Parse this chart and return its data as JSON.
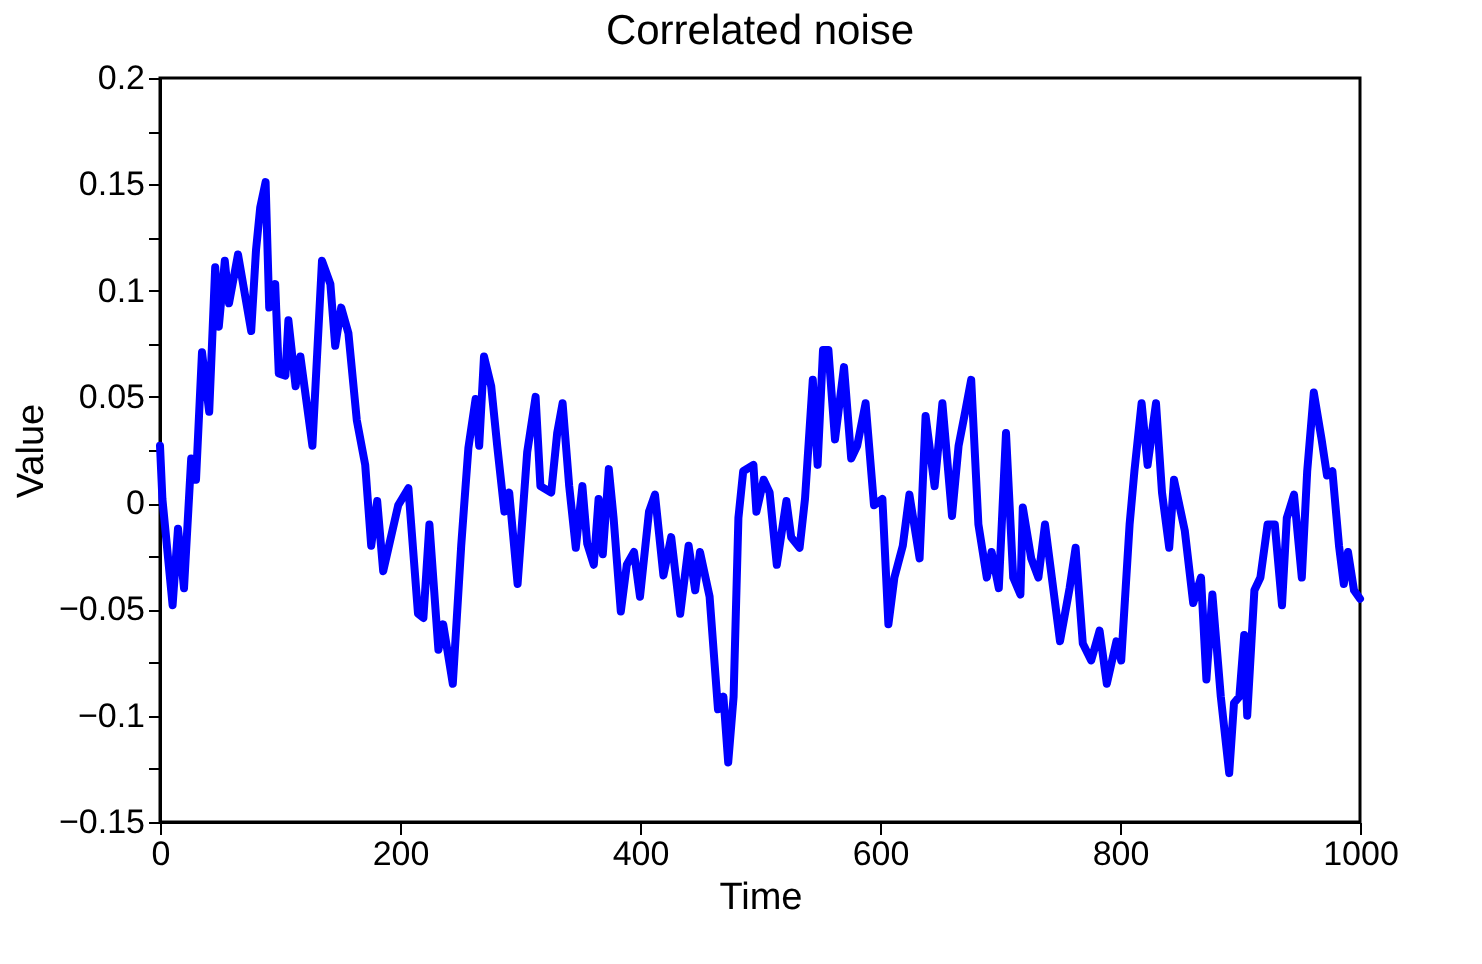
{
  "chart_data": {
    "type": "line",
    "title": "Correlated noise",
    "xlabel": "Time",
    "ylabel": "Value",
    "xlim": [
      0,
      1000
    ],
    "xticks": [
      0,
      200,
      400,
      600,
      800,
      1000
    ],
    "ylim": [
      -0.15,
      0.2
    ],
    "yticks": [
      {
        "value": -0.15,
        "label": "−0.15"
      },
      {
        "value": -0.125,
        "label": null
      },
      {
        "value": -0.1,
        "label": "−0.1"
      },
      {
        "value": -0.075,
        "label": null
      },
      {
        "value": -0.05,
        "label": "−0.05"
      },
      {
        "value": -0.025,
        "label": null
      },
      0,
      {
        "value": 0.025,
        "label": null
      },
      0.05,
      {
        "value": 0.075,
        "label": null
      },
      0.1,
      {
        "value": 0.125,
        "label": null
      },
      0.15,
      {
        "value": 0.175,
        "label": null
      },
      0.2
    ],
    "grid": false,
    "marker": "none",
    "line_style": "solid",
    "series": [
      {
        "color": "#0000ff",
        "x": [
          0,
          2,
          10.5,
          15,
          20,
          26,
          30,
          35,
          41,
          46,
          49,
          54,
          57.5,
          65,
          76,
          80,
          83.5,
          88,
          91,
          96,
          99,
          104.5,
          107,
          113,
          117,
          127,
          135,
          142,
          146,
          151,
          157,
          164,
          171,
          176,
          181,
          186,
          198.5,
          207,
          215,
          219.5,
          224.5,
          232,
          236,
          244,
          251,
          257,
          263,
          266,
          270,
          276,
          281,
          287,
          291,
          298,
          306,
          313,
          317,
          326,
          331,
          335.5,
          341,
          346.5,
          352,
          356,
          361.5,
          365.5,
          369,
          374,
          378,
          384,
          389,
          395,
          400,
          407.5,
          412.5,
          419.5,
          426,
          433.5,
          440.5,
          446,
          450,
          458,
          465,
          469.5,
          473.5,
          478,
          482,
          486,
          494.5,
          497,
          503,
          508,
          514,
          522,
          526,
          533,
          537.5,
          544,
          548,
          552.5,
          557,
          562.5,
          570,
          576,
          581,
          588,
          595,
          602,
          607,
          612,
          619,
          624.5,
          633,
          638,
          645.5,
          652,
          660,
          665.5,
          671,
          676,
          682,
          689,
          693,
          699,
          705,
          711,
          717,
          719,
          726,
          732,
          737.5,
          745,
          750,
          758,
          763,
          769,
          776,
          783,
          789,
          797,
          801,
          808,
          812,
          818,
          823,
          830,
          835,
          841,
          845,
          854,
          861,
          867.5,
          872,
          877,
          884,
          891,
          895,
          899.5,
          903.5,
          906,
          912,
          917,
          923,
          929,
          935,
          939,
          945,
          951.5,
          956,
          961.5,
          968,
          972.5,
          977,
          982.5,
          986.5,
          990,
          995,
          1000
        ],
        "values": [
          0.027,
          0.002,
          -0.048,
          -0.012,
          -0.04,
          0.021,
          0.011,
          0.071,
          0.043,
          0.111,
          0.083,
          0.114,
          0.094,
          0.117,
          0.081,
          0.119,
          0.139,
          0.151,
          0.092,
          0.103,
          0.061,
          0.06,
          0.086,
          0.055,
          0.069,
          0.027,
          0.114,
          0.103,
          0.074,
          0.092,
          0.08,
          0.039,
          0.018,
          -0.02,
          0.001,
          -0.032,
          -0.001,
          0.007,
          -0.052,
          -0.054,
          -0.01,
          -0.069,
          -0.057,
          -0.085,
          -0.02,
          0.026,
          0.049,
          0.027,
          0.069,
          0.055,
          0.027,
          -0.004,
          0.005,
          -0.038,
          0.024,
          0.05,
          0.008,
          0.005,
          0.033,
          0.047,
          0.008,
          -0.021,
          0.008,
          -0.019,
          -0.029,
          0.002,
          -0.024,
          0.016,
          -0.007,
          -0.051,
          -0.029,
          -0.023,
          -0.044,
          -0.004,
          0.004,
          -0.034,
          -0.016,
          -0.052,
          -0.02,
          -0.041,
          -0.023,
          -0.044,
          -0.097,
          -0.091,
          -0.122,
          -0.091,
          -0.007,
          0.015,
          0.018,
          -0.004,
          0.011,
          0.005,
          -0.029,
          0.001,
          -0.016,
          -0.021,
          0.002,
          0.058,
          0.018,
          0.072,
          0.072,
          0.03,
          0.064,
          0.021,
          0.027,
          0.047,
          -0.001,
          0.002,
          -0.057,
          -0.035,
          -0.02,
          0.004,
          -0.026,
          0.041,
          0.008,
          0.047,
          -0.006,
          0.027,
          0.043,
          0.058,
          -0.01,
          -0.035,
          -0.023,
          -0.04,
          0.033,
          -0.035,
          -0.043,
          -0.002,
          -0.026,
          -0.035,
          -0.01,
          -0.043,
          -0.065,
          -0.04,
          -0.021,
          -0.066,
          -0.074,
          -0.06,
          -0.085,
          -0.065,
          -0.074,
          -0.01,
          0.015,
          0.047,
          0.018,
          0.047,
          0.005,
          -0.021,
          0.011,
          -0.013,
          -0.047,
          -0.035,
          -0.083,
          -0.043,
          -0.091,
          -0.127,
          -0.094,
          -0.091,
          -0.062,
          -0.1,
          -0.041,
          -0.035,
          -0.01,
          -0.01,
          -0.048,
          -0.007,
          0.004,
          -0.035,
          0.015,
          0.052,
          0.03,
          0.013,
          0.015,
          -0.02,
          -0.038,
          -0.023,
          -0.041,
          -0.045
        ]
      }
    ]
  }
}
